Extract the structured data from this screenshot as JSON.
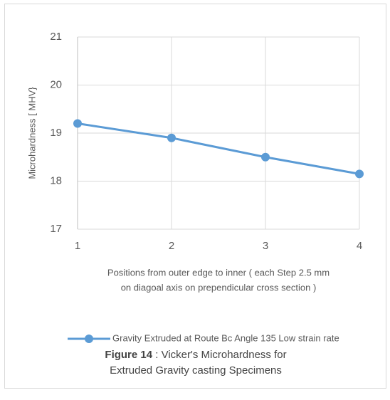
{
  "chart_data": {
    "type": "line",
    "ylabel": "Microhardness [ MHV}",
    "xlabel": [
      "Positions from outer edge to inner ( each Step 2.5 mm",
      "on diagoal axis on  prependicular cross section )"
    ],
    "x": [
      1,
      2,
      3,
      4
    ],
    "series": [
      {
        "name": "Gravity Extruded at Route Bc Angle 135 Low strain rate",
        "color": "#5b9bd5",
        "values": [
          19.2,
          18.9,
          18.5,
          18.15
        ]
      }
    ],
    "xlim": [
      1,
      4
    ],
    "xticks": [
      1,
      2,
      3,
      4
    ],
    "ylim": [
      17,
      21
    ],
    "yticks": [
      17,
      18,
      19,
      20,
      21
    ],
    "grid": true,
    "legend": "bottom"
  },
  "caption": {
    "label": "Figure 14",
    "lines": [
      ":  Vicker's Microhardness for",
      "Extruded Gravity casting Specimens"
    ]
  }
}
